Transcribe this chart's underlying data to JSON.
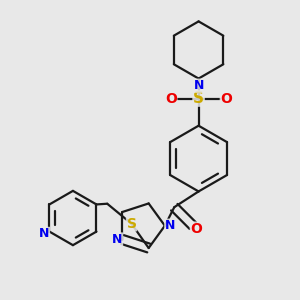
{
  "bg_color": "#e8e8e8",
  "bond_color": "#1a1a1a",
  "N_color": "#0000ee",
  "O_color": "#ee0000",
  "S_color": "#ccaa00",
  "lw": 1.6,
  "xlim": [
    -0.52,
    0.52
  ],
  "ylim": [
    -0.52,
    0.52
  ]
}
